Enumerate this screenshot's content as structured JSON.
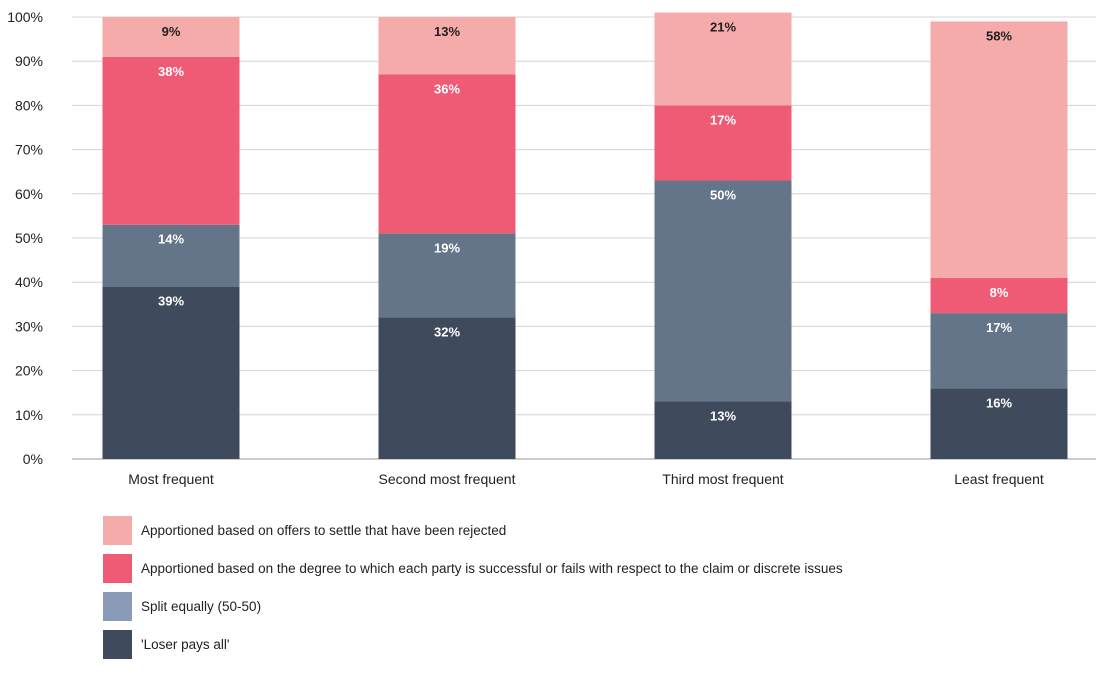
{
  "chart_data": {
    "type": "bar",
    "stacked": true,
    "categories": [
      "Most frequent",
      "Second most frequent",
      "Third most frequent",
      "Least frequent"
    ],
    "ylim": [
      0,
      100
    ],
    "yticks": [
      "0%",
      "10%",
      "20%",
      "30%",
      "40%",
      "50%",
      "60%",
      "70%",
      "80%",
      "90%",
      "100%"
    ],
    "grid": true,
    "legend_position": "bottom-left",
    "series": [
      {
        "name": "'Loser pays all'",
        "color": "#3f4b5d",
        "label_color": "#ffffff",
        "values": [
          39,
          32,
          13,
          16
        ],
        "labels": [
          "39%",
          "32%",
          "13%",
          "16%"
        ]
      },
      {
        "name": "Split equally (50-50)",
        "color": "#647489",
        "legend_color": "#8a9bb8",
        "label_color": "#ffffff",
        "values": [
          14,
          19,
          50,
          17
        ],
        "labels": [
          "14%",
          "19%",
          "50%",
          "17%"
        ]
      },
      {
        "name": "Apportioned based on the degree to which each party is successful or fails with respect to the claim or discrete issues",
        "color": "#ef5a74",
        "label_color": "#ffffff",
        "values": [
          38,
          36,
          17,
          8
        ],
        "labels": [
          "38%",
          "36%",
          "17%",
          "8%"
        ]
      },
      {
        "name": "Apportioned based on offers to settle that have been rejected",
        "color": "#f6abab",
        "label_color": "#1f1f1f",
        "values": [
          9,
          13,
          21,
          58
        ],
        "labels": [
          "9%",
          "13%",
          "21%",
          "58%"
        ]
      }
    ],
    "xlabel": "",
    "ylabel": ""
  }
}
